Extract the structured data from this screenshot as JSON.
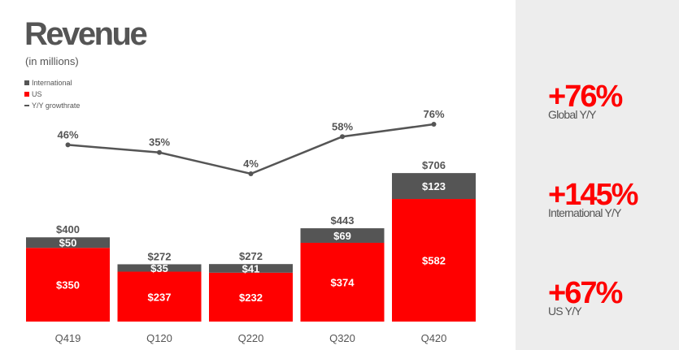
{
  "chart_data": {
    "type": "bar",
    "title": "Revenue",
    "subtitle": "(in millions)",
    "categories": [
      "Q419",
      "Q120",
      "Q220",
      "Q320",
      "Q420"
    ],
    "series": [
      {
        "name": "US",
        "values": [
          350,
          237,
          232,
          374,
          582
        ],
        "labels": [
          "$350",
          "$237",
          "$232",
          "$374",
          "$582"
        ],
        "color": "#ff0000"
      },
      {
        "name": "International",
        "values": [
          50,
          35,
          41,
          69,
          123
        ],
        "labels": [
          "$50",
          "$35",
          "$41",
          "$69",
          "$123"
        ],
        "color": "#555555"
      }
    ],
    "totals": [
      400,
      272,
      272,
      443,
      706
    ],
    "total_labels": [
      "$400",
      "$272",
      "$272",
      "$443",
      "$706"
    ],
    "growth": {
      "name": "Y/Y growthrate",
      "values": [
        46,
        35,
        4,
        58,
        76
      ],
      "labels": [
        "46%",
        "35%",
        "4%",
        "58%",
        "76%"
      ],
      "color": "#555555"
    },
    "stacked": true,
    "grid": false,
    "legend_position": "top-left",
    "legend": [
      {
        "label": "International",
        "color": "#555555",
        "kind": "box"
      },
      {
        "label": "US",
        "color": "#ff0000",
        "kind": "box"
      },
      {
        "label": "Y/Y growthrate",
        "color": "#555555",
        "kind": "line"
      }
    ]
  },
  "stats": [
    {
      "value": "+76%",
      "label": "Global Y/Y"
    },
    {
      "value": "+145%",
      "label": "International Y/Y"
    },
    {
      "value": "+67%",
      "label": "US Y/Y"
    }
  ]
}
